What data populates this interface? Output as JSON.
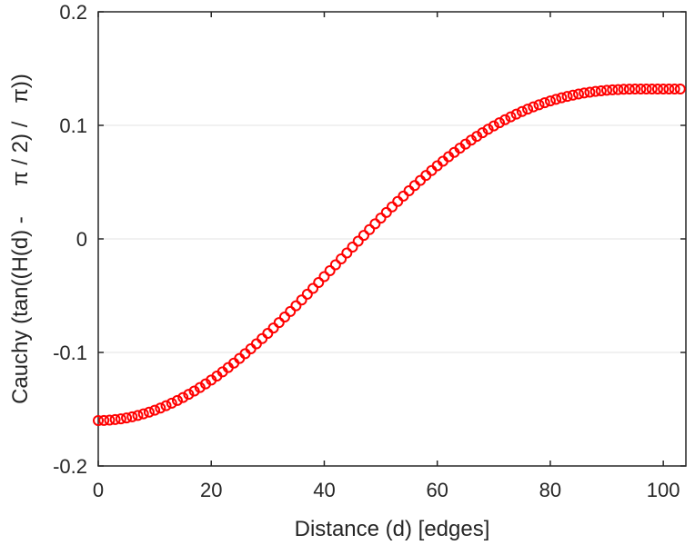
{
  "chart_data": {
    "type": "scatter",
    "title": "",
    "xlabel": "Distance (d) [edges]",
    "ylabel": "Cauchy (tan((H(d) -     π / 2) /   π))",
    "xlim": [
      0,
      104
    ],
    "ylim": [
      -0.2,
      0.2
    ],
    "xticks": [
      0,
      20,
      40,
      60,
      80,
      100
    ],
    "xtick_labels": [
      "0",
      "20",
      "40",
      "60",
      "80",
      "100"
    ],
    "yticks": [
      -0.2,
      -0.1,
      0,
      0.1,
      0.2
    ],
    "ytick_labels": [
      "-0.2",
      "-0.1",
      "0",
      "0.1",
      "0.2"
    ],
    "grid": "horizontal",
    "marker": "open-circle",
    "marker_color": "#ff0000",
    "series": [
      {
        "x": [
          0,
          1,
          2,
          3,
          4,
          5,
          6,
          7,
          8,
          9,
          10,
          11,
          12,
          13,
          14,
          15,
          16,
          17,
          18,
          19,
          20,
          21,
          22,
          23,
          24,
          25,
          26,
          27,
          28,
          29,
          30,
          31,
          32,
          33,
          34,
          35,
          36,
          37,
          38,
          39,
          40,
          41,
          42,
          43,
          44,
          45,
          46,
          47,
          48,
          49,
          50,
          51,
          52,
          53,
          54,
          55,
          56,
          57,
          58,
          59,
          60,
          61,
          62,
          63,
          64,
          65,
          66,
          67,
          68,
          69,
          70,
          71,
          72,
          73,
          74,
          75,
          76,
          77,
          78,
          79,
          80,
          81,
          82,
          83,
          84,
          85,
          86,
          87,
          88,
          89,
          90,
          91,
          92,
          93,
          94,
          95,
          96,
          97,
          98,
          99,
          100,
          101,
          102,
          103
        ],
        "y": [
          -0.16,
          -0.1599,
          -0.1596,
          -0.1591,
          -0.1585,
          -0.1577,
          -0.1567,
          -0.1555,
          -0.1541,
          -0.1526,
          -0.1509,
          -0.149,
          -0.1469,
          -0.1447,
          -0.1423,
          -0.1397,
          -0.1369,
          -0.134,
          -0.1309,
          -0.1277,
          -0.1243,
          -0.1208,
          -0.1171,
          -0.1133,
          -0.1094,
          -0.1053,
          -0.1011,
          -0.0968,
          -0.0924,
          -0.0878,
          -0.0832,
          -0.0785,
          -0.0737,
          -0.0688,
          -0.0639,
          -0.0589,
          -0.0538,
          -0.0487,
          -0.0436,
          -0.0384,
          -0.0332,
          -0.028,
          -0.0228,
          -0.0176,
          -0.0124,
          -0.0072,
          -0.002,
          0.0031,
          0.0082,
          0.0133,
          0.0183,
          0.0233,
          0.0282,
          0.033,
          0.0377,
          0.0424,
          0.047,
          0.0515,
          0.0559,
          0.0602,
          0.0644,
          0.0684,
          0.0724,
          0.0762,
          0.0799,
          0.0835,
          0.087,
          0.0903,
          0.0935,
          0.0966,
          0.0995,
          0.1023,
          0.105,
          0.1075,
          0.1099,
          0.1122,
          0.1143,
          0.1163,
          0.1181,
          0.1199,
          0.1215,
          0.1229,
          0.1243,
          0.1255,
          0.1266,
          0.1276,
          0.1285,
          0.1292,
          0.1299,
          0.1304,
          0.1309,
          0.1313,
          0.1315,
          0.1318,
          0.1319,
          0.132,
          0.132,
          0.132,
          0.132,
          0.132,
          0.132,
          0.132,
          0.132,
          0.132
        ]
      }
    ]
  }
}
